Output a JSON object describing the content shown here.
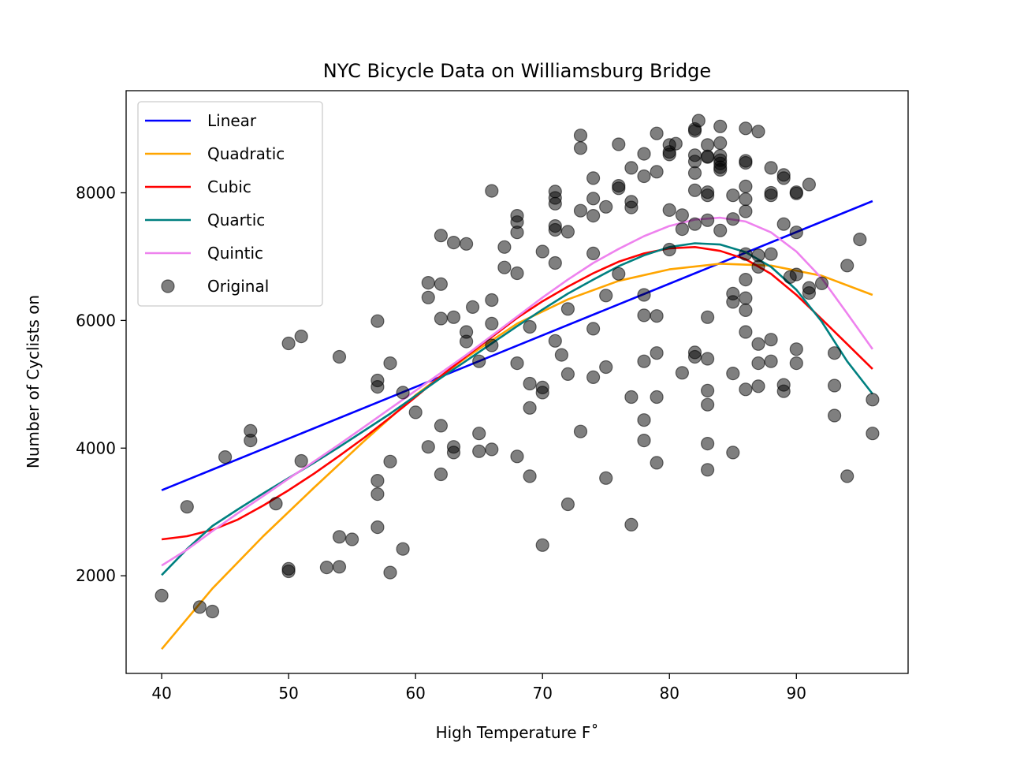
{
  "chart_data": {
    "type": "scatter",
    "title": "NYC Bicycle Data on Williamsburg Bridge",
    "xlabel": "High Temperature F˚",
    "ylabel": "Number of Cyclists on",
    "xlim": [
      37.2,
      98.8
    ],
    "ylim": [
      470,
      9600
    ],
    "xticks": [
      40,
      50,
      60,
      70,
      80,
      90
    ],
    "yticks": [
      2000,
      4000,
      6000,
      8000
    ],
    "legend_position": "top-left",
    "grid": false,
    "series": [
      {
        "name": "Linear",
        "kind": "line",
        "color": "#0000ff",
        "x": [
          40,
          96
        ],
        "y": [
          3340,
          7870
        ]
      },
      {
        "name": "Quadratic",
        "kind": "line",
        "color": "#ffa500",
        "x": [
          40,
          44,
          48,
          52,
          56,
          60,
          64,
          68,
          72,
          76,
          80,
          84,
          88,
          92,
          96
        ],
        "y": [
          850,
          1800,
          2620,
          3380,
          4120,
          4830,
          5420,
          5950,
          6330,
          6620,
          6800,
          6890,
          6860,
          6700,
          6400
        ]
      },
      {
        "name": "Cubic",
        "kind": "line",
        "color": "#ff0000",
        "x": [
          40,
          42,
          44,
          46,
          48,
          50,
          52,
          54,
          56,
          58,
          60,
          62,
          64,
          66,
          68,
          70,
          72,
          74,
          76,
          78,
          80,
          82,
          84,
          86,
          88,
          90,
          92,
          94,
          96
        ],
        "y": [
          2570,
          2620,
          2720,
          2880,
          3100,
          3340,
          3600,
          3880,
          4170,
          4480,
          4800,
          5130,
          5440,
          5740,
          6040,
          6300,
          6530,
          6740,
          6920,
          7050,
          7130,
          7150,
          7090,
          6960,
          6730,
          6400,
          6020,
          5630,
          5240
        ]
      },
      {
        "name": "Quartic",
        "kind": "line",
        "color": "#008080",
        "x": [
          40,
          42,
          44,
          46,
          48,
          50,
          52,
          54,
          56,
          58,
          60,
          62,
          64,
          66,
          68,
          70,
          72,
          74,
          76,
          78,
          80,
          82,
          84,
          86,
          88,
          90,
          92,
          94,
          96
        ],
        "y": [
          2010,
          2420,
          2780,
          3040,
          3290,
          3530,
          3770,
          4020,
          4280,
          4540,
          4820,
          5100,
          5370,
          5640,
          5910,
          6170,
          6420,
          6640,
          6850,
          7020,
          7150,
          7210,
          7190,
          7070,
          6840,
          6480,
          5980,
          5360,
          4850
        ]
      },
      {
        "name": "Quintic",
        "kind": "line",
        "color": "#ee82ee",
        "x": [
          40,
          42,
          44,
          46,
          48,
          50,
          52,
          54,
          56,
          58,
          60,
          62,
          64,
          66,
          68,
          70,
          72,
          74,
          76,
          78,
          80,
          82,
          84,
          86,
          88,
          90,
          92,
          94,
          96
        ],
        "y": [
          2160,
          2410,
          2700,
          2980,
          3250,
          3520,
          3790,
          4060,
          4340,
          4620,
          4900,
          5180,
          5460,
          5760,
          6060,
          6360,
          6640,
          6900,
          7120,
          7320,
          7480,
          7580,
          7610,
          7550,
          7380,
          7080,
          6660,
          6110,
          5550
        ]
      },
      {
        "name": "Original",
        "kind": "scatter",
        "color": "#000000",
        "opacity": 0.5,
        "points": [
          [
            40,
            1690
          ],
          [
            42,
            3080
          ],
          [
            43,
            1510
          ],
          [
            44,
            1440
          ],
          [
            45,
            3860
          ],
          [
            47,
            4270
          ],
          [
            47,
            4120
          ],
          [
            49,
            3130
          ],
          [
            50,
            5640
          ],
          [
            50,
            2110
          ],
          [
            50,
            2070
          ],
          [
            51,
            5750
          ],
          [
            51,
            3800
          ],
          [
            53,
            2130
          ],
          [
            54,
            2140
          ],
          [
            54,
            2610
          ],
          [
            54,
            5430
          ],
          [
            55,
            2570
          ],
          [
            57,
            5990
          ],
          [
            57,
            5060
          ],
          [
            57,
            4960
          ],
          [
            57,
            3280
          ],
          [
            57,
            3490
          ],
          [
            57,
            2760
          ],
          [
            58,
            5330
          ],
          [
            58,
            3790
          ],
          [
            58,
            2050
          ],
          [
            59,
            4870
          ],
          [
            59,
            2420
          ],
          [
            60,
            4560
          ],
          [
            61,
            6590
          ],
          [
            61,
            6360
          ],
          [
            61,
            4020
          ],
          [
            62,
            7330
          ],
          [
            62,
            6570
          ],
          [
            62,
            6030
          ],
          [
            62,
            4350
          ],
          [
            62,
            3590
          ],
          [
            63,
            7220
          ],
          [
            63,
            6050
          ],
          [
            63,
            4020
          ],
          [
            63,
            3930
          ],
          [
            64,
            7200
          ],
          [
            64,
            5820
          ],
          [
            64,
            5670
          ],
          [
            64.5,
            6210
          ],
          [
            65,
            5360
          ],
          [
            65,
            4230
          ],
          [
            65,
            3950
          ],
          [
            66,
            8030
          ],
          [
            66,
            6320
          ],
          [
            66,
            5950
          ],
          [
            66,
            5610
          ],
          [
            66,
            3980
          ],
          [
            67,
            7150
          ],
          [
            67,
            6830
          ],
          [
            68,
            7640
          ],
          [
            68,
            7540
          ],
          [
            68,
            7380
          ],
          [
            68,
            6740
          ],
          [
            68,
            5330
          ],
          [
            68,
            3870
          ],
          [
            69,
            5900
          ],
          [
            69,
            5010
          ],
          [
            69,
            4630
          ],
          [
            69,
            3560
          ],
          [
            70,
            7080
          ],
          [
            70,
            4950
          ],
          [
            70,
            4870
          ],
          [
            70,
            2480
          ],
          [
            71,
            8020
          ],
          [
            71,
            7920
          ],
          [
            71,
            7830
          ],
          [
            71,
            7480
          ],
          [
            71,
            7420
          ],
          [
            71,
            6900
          ],
          [
            71,
            5680
          ],
          [
            71.5,
            5460
          ],
          [
            72,
            7390
          ],
          [
            72,
            6180
          ],
          [
            72,
            5160
          ],
          [
            72,
            3120
          ],
          [
            73,
            8900
          ],
          [
            73,
            8700
          ],
          [
            73,
            7720
          ],
          [
            73,
            4260
          ],
          [
            74,
            8230
          ],
          [
            74,
            7910
          ],
          [
            74,
            7640
          ],
          [
            74,
            7050
          ],
          [
            74,
            5870
          ],
          [
            74,
            5110
          ],
          [
            75,
            7780
          ],
          [
            75,
            6390
          ],
          [
            75,
            5270
          ],
          [
            75,
            3530
          ],
          [
            76,
            8760
          ],
          [
            76,
            8110
          ],
          [
            76,
            8070
          ],
          [
            76,
            6730
          ],
          [
            77,
            8390
          ],
          [
            77,
            7860
          ],
          [
            77,
            7770
          ],
          [
            77,
            4800
          ],
          [
            77,
            2800
          ],
          [
            78,
            8610
          ],
          [
            78,
            8260
          ],
          [
            78,
            6400
          ],
          [
            78,
            6080
          ],
          [
            78,
            5360
          ],
          [
            78,
            4440
          ],
          [
            78,
            4120
          ],
          [
            79,
            8930
          ],
          [
            79,
            8330
          ],
          [
            79,
            6070
          ],
          [
            79,
            5490
          ],
          [
            79,
            4800
          ],
          [
            79,
            3770
          ],
          [
            80,
            8750
          ],
          [
            80,
            8640
          ],
          [
            80,
            8600
          ],
          [
            80,
            7730
          ],
          [
            80,
            7110
          ],
          [
            80.5,
            8770
          ],
          [
            81,
            7650
          ],
          [
            81,
            7430
          ],
          [
            81,
            5180
          ],
          [
            82,
            9000
          ],
          [
            82,
            8970
          ],
          [
            82,
            8590
          ],
          [
            82,
            8490
          ],
          [
            82,
            8310
          ],
          [
            82,
            8040
          ],
          [
            82,
            7510
          ],
          [
            82,
            5500
          ],
          [
            82,
            5430
          ],
          [
            82.3,
            9130
          ],
          [
            83,
            8750
          ],
          [
            83,
            8570
          ],
          [
            83,
            8560
          ],
          [
            83,
            8010
          ],
          [
            83,
            7960
          ],
          [
            83,
            7570
          ],
          [
            83,
            6050
          ],
          [
            83,
            5400
          ],
          [
            83,
            4900
          ],
          [
            83,
            4680
          ],
          [
            83,
            4070
          ],
          [
            83,
            3660
          ],
          [
            84,
            9040
          ],
          [
            84,
            8780
          ],
          [
            84,
            8580
          ],
          [
            84,
            8510
          ],
          [
            84,
            8460
          ],
          [
            84,
            8400
          ],
          [
            84,
            8360
          ],
          [
            84,
            7410
          ],
          [
            85,
            7960
          ],
          [
            85,
            7590
          ],
          [
            85,
            6420
          ],
          [
            85,
            6290
          ],
          [
            85,
            5170
          ],
          [
            85,
            3930
          ],
          [
            86,
            9010
          ],
          [
            86,
            8500
          ],
          [
            86,
            8470
          ],
          [
            86,
            8100
          ],
          [
            86,
            7900
          ],
          [
            86,
            7710
          ],
          [
            86,
            7040
          ],
          [
            86,
            6640
          ],
          [
            86,
            6350
          ],
          [
            86,
            6160
          ],
          [
            86,
            5820
          ],
          [
            86,
            4920
          ],
          [
            87,
            8960
          ],
          [
            87,
            7020
          ],
          [
            87,
            6840
          ],
          [
            87,
            5630
          ],
          [
            87,
            5330
          ],
          [
            87,
            4970
          ],
          [
            88,
            8390
          ],
          [
            88,
            8000
          ],
          [
            88,
            7960
          ],
          [
            88,
            7040
          ],
          [
            88,
            5700
          ],
          [
            88,
            5360
          ],
          [
            89,
            8280
          ],
          [
            89,
            8230
          ],
          [
            89,
            7510
          ],
          [
            89,
            4990
          ],
          [
            89,
            4890
          ],
          [
            89.5,
            6680
          ],
          [
            90,
            8010
          ],
          [
            90,
            7990
          ],
          [
            90,
            7380
          ],
          [
            90,
            6720
          ],
          [
            90,
            5550
          ],
          [
            90,
            5330
          ],
          [
            91,
            8130
          ],
          [
            91,
            6510
          ],
          [
            91,
            6430
          ],
          [
            92,
            6580
          ],
          [
            93,
            5490
          ],
          [
            93,
            4980
          ],
          [
            93,
            4510
          ],
          [
            94,
            6860
          ],
          [
            94,
            3560
          ],
          [
            95,
            7270
          ],
          [
            96,
            4760
          ],
          [
            96,
            4230
          ]
        ]
      }
    ]
  }
}
